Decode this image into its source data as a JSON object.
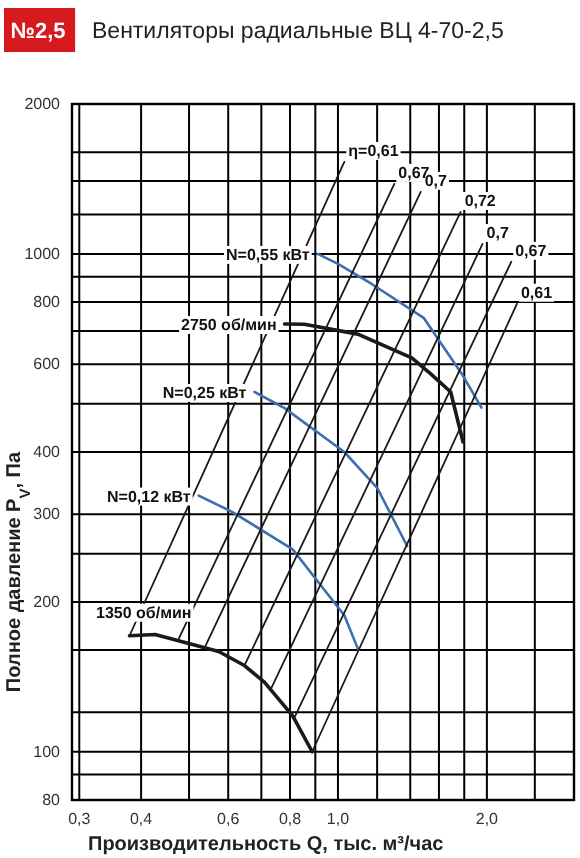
{
  "chart_data": {
    "type": "line",
    "title": "Вентиляторы радиальные ВЦ 4-70-2,5",
    "subtitle": "№2,5",
    "xlabel": "Производительность Q, тыс. м³/час",
    "ylabel": "Полное давление P$_{V}$, Па",
    "log": "xy",
    "grid": true,
    "marker": "none",
    "line_style": "solid",
    "xlim": [
      0.29,
      3.0
    ],
    "xticks": [
      {
        "value": 0.3,
        "label": "0,3"
      },
      {
        "value": 0.4,
        "label": "0,4"
      },
      {
        "value": 0.5,
        "label": null
      },
      {
        "value": 0.6,
        "label": "0,6"
      },
      {
        "value": 0.7,
        "label": null
      },
      {
        "value": 0.8,
        "label": "0,8"
      },
      {
        "value": 0.9,
        "label": null
      },
      {
        "value": 1.0,
        "label": "1,0"
      },
      {
        "value": 1.2,
        "label": null
      },
      {
        "value": 1.4,
        "label": null
      },
      {
        "value": 1.6,
        "label": null
      },
      {
        "value": 1.8,
        "label": null
      },
      {
        "value": 2.0,
        "label": "2,0"
      },
      {
        "value": 2.5,
        "label": null
      }
    ],
    "ylim": [
      80,
      2000
    ],
    "yticks": [
      80,
      {
        "value": 90,
        "label": null
      },
      100,
      {
        "value": 120,
        "label": null
      },
      {
        "value": 160,
        "label": null
      },
      200,
      {
        "value": 250,
        "label": null
      },
      300,
      400,
      {
        "value": 500,
        "label": null
      },
      600,
      {
        "value": 700,
        "label": null
      },
      800,
      {
        "value": 900,
        "label": null
      },
      1000,
      {
        "value": 1200,
        "label": null
      },
      {
        "value": 1400,
        "label": null
      },
      {
        "value": 1600,
        "label": null
      },
      2000
    ],
    "series": [
      {
        "name": "2750 об/мин",
        "color": "#1a1a1a",
        "x": [
          0.78,
          0.855,
          1.097,
          1.41,
          1.54,
          1.69,
          1.79
        ],
        "values": [
          723,
          722,
          690,
          618,
          574,
          528,
          419
        ]
      },
      {
        "name": "1350 об/мин",
        "color": "#1a1a1a",
        "x": [
          0.379,
          0.427,
          0.574,
          0.647,
          0.71,
          0.81,
          0.887
        ],
        "values": [
          171,
          172,
          159,
          149,
          138,
          118,
          100
        ]
      },
      {
        "name": "N=0,55 кВт",
        "color": "#3d6fb0",
        "x": [
          0.91,
          1.0,
          1.17,
          1.49,
          1.78,
          1.95
        ],
        "values": [
          1000,
          955,
          870,
          744,
          574,
          491
        ]
      },
      {
        "name": "N=0,25 кВт",
        "color": "#3d6fb0",
        "x": [
          0.678,
          0.78,
          1.03,
          1.2,
          1.38
        ],
        "values": [
          528,
          490,
          400,
          339,
          259
        ]
      },
      {
        "name": "N=0,12 кВт",
        "color": "#3d6fb0",
        "x": [
          0.523,
          0.612,
          0.81,
          0.94,
          1.03,
          1.1
        ],
        "values": [
          327,
          303,
          255,
          211,
          188,
          160
        ]
      },
      {
        "name": "η=0,61",
        "color": "#1a1a1a",
        "x": [
          0.379,
          1.03
        ],
        "values": [
          171,
          1530
        ]
      },
      {
        "name": "0,67",
        "color": "#1a1a1a",
        "x": [
          0.477,
          1.3
        ],
        "values": [
          169,
          1382
        ]
      },
      {
        "name": "0,7",
        "color": "#1a1a1a",
        "x": [
          0.538,
          1.47
        ],
        "values": [
          162,
          1332
        ]
      },
      {
        "name": "0,72",
        "color": "#1a1a1a",
        "x": [
          0.647,
          1.77
        ],
        "values": [
          149,
          1214
        ]
      },
      {
        "name": "0,7",
        "color": "#1a1a1a",
        "x": [
          0.73,
          1.96
        ],
        "values": [
          133,
          1047
        ]
      },
      {
        "name": "0,67",
        "color": "#1a1a1a",
        "x": [
          0.816,
          2.24
        ],
        "values": [
          117,
          964
        ]
      },
      {
        "name": "0,61",
        "color": "#1a1a1a",
        "x": [
          0.887,
          2.3
        ],
        "values": [
          100,
          794
        ]
      }
    ]
  }
}
